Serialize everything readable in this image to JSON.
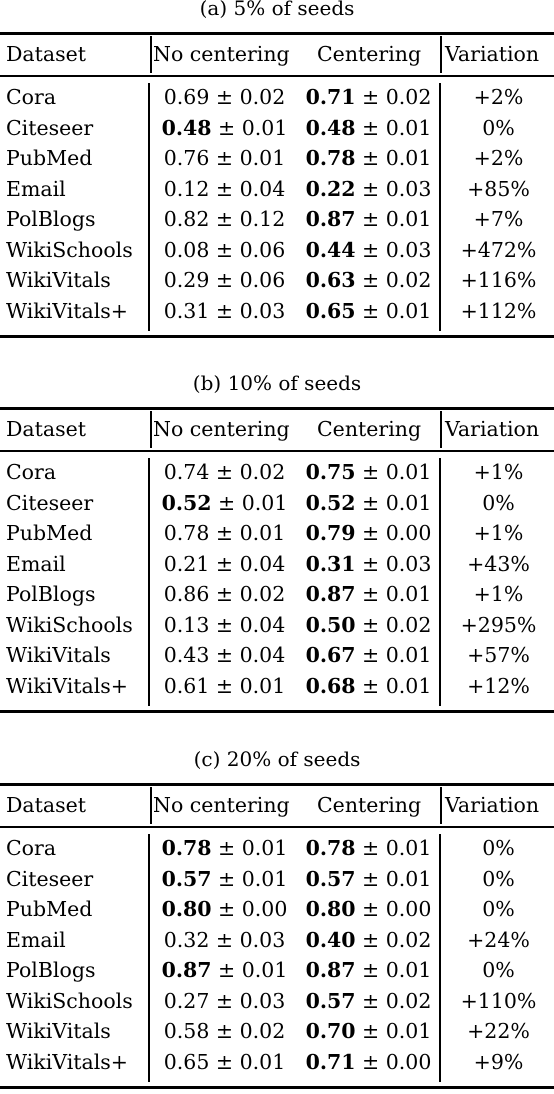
{
  "header": {
    "dataset": "Dataset",
    "no_centering": "No centering",
    "centering": "Centering",
    "variation": "Variation"
  },
  "tables": [
    {
      "caption": "(a) 5% of seeds",
      "rows": [
        {
          "dataset": "Cora",
          "nc_mean": "0.69",
          "nc_sd": "0.02",
          "nc_bold": false,
          "c_mean": "0.71",
          "c_sd": "0.02",
          "c_bold": true,
          "variation": "+2%"
        },
        {
          "dataset": "Citeseer",
          "nc_mean": "0.48",
          "nc_sd": "0.01",
          "nc_bold": true,
          "c_mean": "0.48",
          "c_sd": "0.01",
          "c_bold": true,
          "variation": "0%"
        },
        {
          "dataset": "PubMed",
          "nc_mean": "0.76",
          "nc_sd": "0.01",
          "nc_bold": false,
          "c_mean": "0.78",
          "c_sd": "0.01",
          "c_bold": true,
          "variation": "+2%"
        },
        {
          "dataset": "Email",
          "nc_mean": "0.12",
          "nc_sd": "0.04",
          "nc_bold": false,
          "c_mean": "0.22",
          "c_sd": "0.03",
          "c_bold": true,
          "variation": "+85%"
        },
        {
          "dataset": "PolBlogs",
          "nc_mean": "0.82",
          "nc_sd": "0.12",
          "nc_bold": false,
          "c_mean": "0.87",
          "c_sd": "0.01",
          "c_bold": true,
          "variation": "+7%"
        },
        {
          "dataset": "WikiSchools",
          "nc_mean": "0.08",
          "nc_sd": "0.06",
          "nc_bold": false,
          "c_mean": "0.44",
          "c_sd": "0.03",
          "c_bold": true,
          "variation": "+472%"
        },
        {
          "dataset": "WikiVitals",
          "nc_mean": "0.29",
          "nc_sd": "0.06",
          "nc_bold": false,
          "c_mean": "0.63",
          "c_sd": "0.02",
          "c_bold": true,
          "variation": "+116%"
        },
        {
          "dataset": "WikiVitals+",
          "nc_mean": "0.31",
          "nc_sd": "0.03",
          "nc_bold": false,
          "c_mean": "0.65",
          "c_sd": "0.01",
          "c_bold": true,
          "variation": "+112%"
        }
      ]
    },
    {
      "caption": "(b) 10% of seeds",
      "rows": [
        {
          "dataset": "Cora",
          "nc_mean": "0.74",
          "nc_sd": "0.02",
          "nc_bold": false,
          "c_mean": "0.75",
          "c_sd": "0.01",
          "c_bold": true,
          "variation": "+1%"
        },
        {
          "dataset": "Citeseer",
          "nc_mean": "0.52",
          "nc_sd": "0.01",
          "nc_bold": true,
          "c_mean": "0.52",
          "c_sd": "0.01",
          "c_bold": true,
          "variation": "0%"
        },
        {
          "dataset": "PubMed",
          "nc_mean": "0.78",
          "nc_sd": "0.01",
          "nc_bold": false,
          "c_mean": "0.79",
          "c_sd": "0.00",
          "c_bold": true,
          "variation": "+1%"
        },
        {
          "dataset": "Email",
          "nc_mean": "0.21",
          "nc_sd": "0.04",
          "nc_bold": false,
          "c_mean": "0.31",
          "c_sd": "0.03",
          "c_bold": true,
          "variation": "+43%"
        },
        {
          "dataset": "PolBlogs",
          "nc_mean": "0.86",
          "nc_sd": "0.02",
          "nc_bold": false,
          "c_mean": "0.87",
          "c_sd": "0.01",
          "c_bold": true,
          "variation": "+1%"
        },
        {
          "dataset": "WikiSchools",
          "nc_mean": "0.13",
          "nc_sd": "0.04",
          "nc_bold": false,
          "c_mean": "0.50",
          "c_sd": "0.02",
          "c_bold": true,
          "variation": "+295%"
        },
        {
          "dataset": "WikiVitals",
          "nc_mean": "0.43",
          "nc_sd": "0.04",
          "nc_bold": false,
          "c_mean": "0.67",
          "c_sd": "0.01",
          "c_bold": true,
          "variation": "+57%"
        },
        {
          "dataset": "WikiVitals+",
          "nc_mean": "0.61",
          "nc_sd": "0.01",
          "nc_bold": false,
          "c_mean": "0.68",
          "c_sd": "0.01",
          "c_bold": true,
          "variation": "+12%"
        }
      ]
    },
    {
      "caption": "(c) 20% of seeds",
      "rows": [
        {
          "dataset": "Cora",
          "nc_mean": "0.78",
          "nc_sd": "0.01",
          "nc_bold": true,
          "c_mean": "0.78",
          "c_sd": "0.01",
          "c_bold": true,
          "variation": "0%"
        },
        {
          "dataset": "Citeseer",
          "nc_mean": "0.57",
          "nc_sd": "0.01",
          "nc_bold": true,
          "c_mean": "0.57",
          "c_sd": "0.01",
          "c_bold": true,
          "variation": "0%"
        },
        {
          "dataset": "PubMed",
          "nc_mean": "0.80",
          "nc_sd": "0.00",
          "nc_bold": true,
          "c_mean": "0.80",
          "c_sd": "0.00",
          "c_bold": true,
          "variation": "0%"
        },
        {
          "dataset": "Email",
          "nc_mean": "0.32",
          "nc_sd": "0.03",
          "nc_bold": false,
          "c_mean": "0.40",
          "c_sd": "0.02",
          "c_bold": true,
          "variation": "+24%"
        },
        {
          "dataset": "PolBlogs",
          "nc_mean": "0.87",
          "nc_sd": "0.01",
          "nc_bold": true,
          "c_mean": "0.87",
          "c_sd": "0.01",
          "c_bold": true,
          "variation": "0%"
        },
        {
          "dataset": "WikiSchools",
          "nc_mean": "0.27",
          "nc_sd": "0.03",
          "nc_bold": false,
          "c_mean": "0.57",
          "c_sd": "0.02",
          "c_bold": true,
          "variation": "+110%"
        },
        {
          "dataset": "WikiVitals",
          "nc_mean": "0.58",
          "nc_sd": "0.02",
          "nc_bold": false,
          "c_mean": "0.70",
          "c_sd": "0.01",
          "c_bold": true,
          "variation": "+22%"
        },
        {
          "dataset": "WikiVitals+",
          "nc_mean": "0.65",
          "nc_sd": "0.01",
          "nc_bold": false,
          "c_mean": "0.71",
          "c_sd": "0.00",
          "c_bold": true,
          "variation": "+9%"
        }
      ]
    }
  ]
}
